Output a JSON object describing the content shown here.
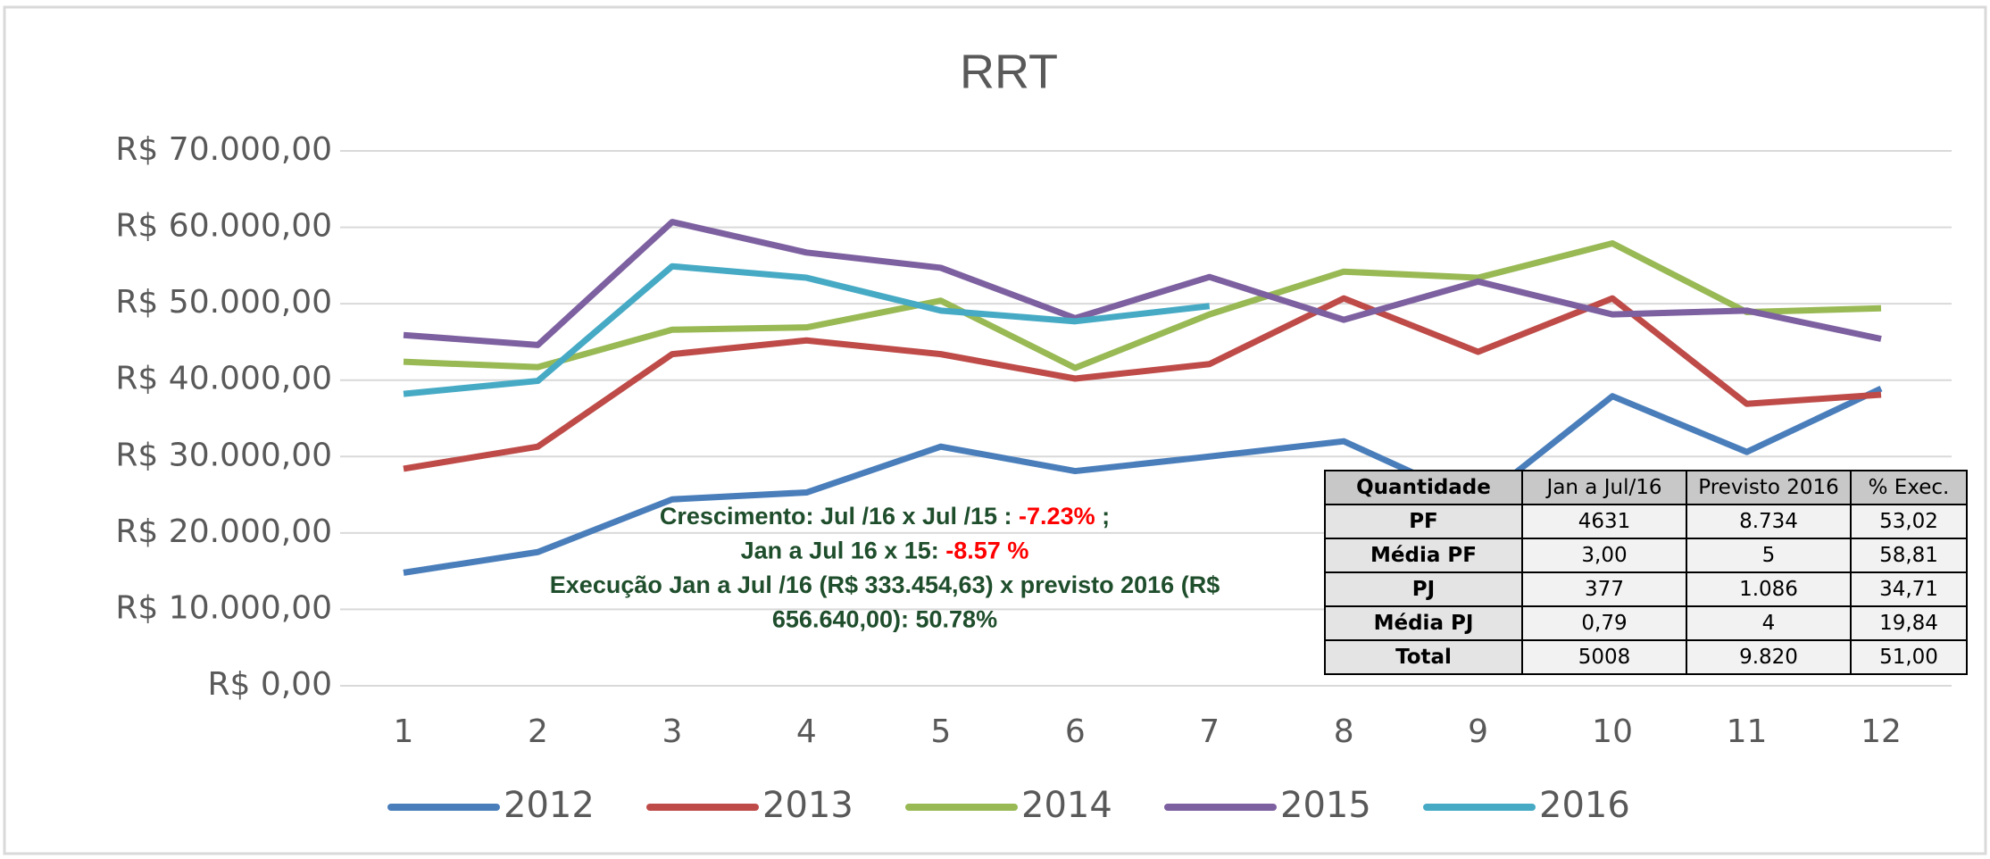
{
  "chart_data": {
    "type": "line",
    "title": "RRT",
    "categories": [
      "1",
      "2",
      "3",
      "4",
      "5",
      "6",
      "7",
      "8",
      "9",
      "10",
      "11",
      "12"
    ],
    "ylim": [
      0,
      70000
    ],
    "yticks": [
      {
        "value": 0,
        "label": "R$ 0,00"
      },
      {
        "value": 10000,
        "label": "R$ 10.000,00"
      },
      {
        "value": 20000,
        "label": "R$ 20.000,00"
      },
      {
        "value": 30000,
        "label": "R$ 30.000,00"
      },
      {
        "value": 40000,
        "label": "R$ 40.000,00"
      },
      {
        "value": 50000,
        "label": "R$ 50.000,00"
      },
      {
        "value": 60000,
        "label": "R$ 60.000,00"
      },
      {
        "value": 70000,
        "label": "R$ 70.000,00"
      }
    ],
    "grid": true,
    "legend": "bottom",
    "series": [
      {
        "name": "2012",
        "color": "#4a7ebb",
        "values": [
          14800,
          17500,
          24400,
          25300,
          31300,
          28100,
          30000,
          32000,
          24000,
          37900,
          30600,
          38900
        ]
      },
      {
        "name": "2013",
        "color": "#be4b48",
        "values": [
          28400,
          31300,
          43400,
          45200,
          43400,
          40200,
          42100,
          50700,
          43700,
          50700,
          36900,
          38100
        ]
      },
      {
        "name": "2014",
        "color": "#98b954",
        "values": [
          42400,
          41700,
          46600,
          46900,
          50400,
          41600,
          48600,
          54200,
          53400,
          57900,
          48900,
          49400
        ]
      },
      {
        "name": "2015",
        "color": "#7d60a0",
        "values": [
          45900,
          44600,
          60700,
          56700,
          54700,
          48100,
          53500,
          47900,
          52900,
          48600,
          49100,
          45400
        ]
      },
      {
        "name": "2016",
        "color": "#46aac5",
        "values": [
          38200,
          39900,
          54900,
          53400,
          49100,
          47700,
          49700,
          null,
          null,
          null,
          null,
          null
        ]
      }
    ],
    "annotation": [
      [
        {
          "text": "Crescimento: Jul /16 x Jul /15 : ",
          "color": "#1f4e2c"
        },
        {
          "text": "-7.23%",
          "color": "#ff0000"
        },
        {
          "text": " ;",
          "color": "#1f4e2c"
        }
      ],
      [
        {
          "text": "Jan a Jul 16 x 15: ",
          "color": "#1f4e2c"
        },
        {
          "text": "-8.57 %",
          "color": "#ff0000"
        }
      ],
      [
        {
          "text": "Execução Jan a Jul /16 (R$ 333.454,63) x previsto 2016 (R$",
          "color": "#1f4e2c"
        }
      ],
      [
        {
          "text": "656.640,00):  50.78%",
          "color": "#1f4e2c"
        }
      ]
    ],
    "table": {
      "header": [
        "Quantidade",
        "Jan a Jul/16",
        "Previsto 2016",
        "% Exec."
      ],
      "rows": [
        [
          "PF",
          "4631",
          "8.734",
          "53,02"
        ],
        [
          "Média PF",
          "3,00",
          "5",
          "58,81"
        ],
        [
          "PJ",
          "377",
          "1.086",
          "34,71"
        ],
        [
          "Média PJ",
          "0,79",
          "4",
          "19,84"
        ],
        [
          "Total",
          "5008",
          "9.820",
          "51,00"
        ]
      ]
    }
  }
}
